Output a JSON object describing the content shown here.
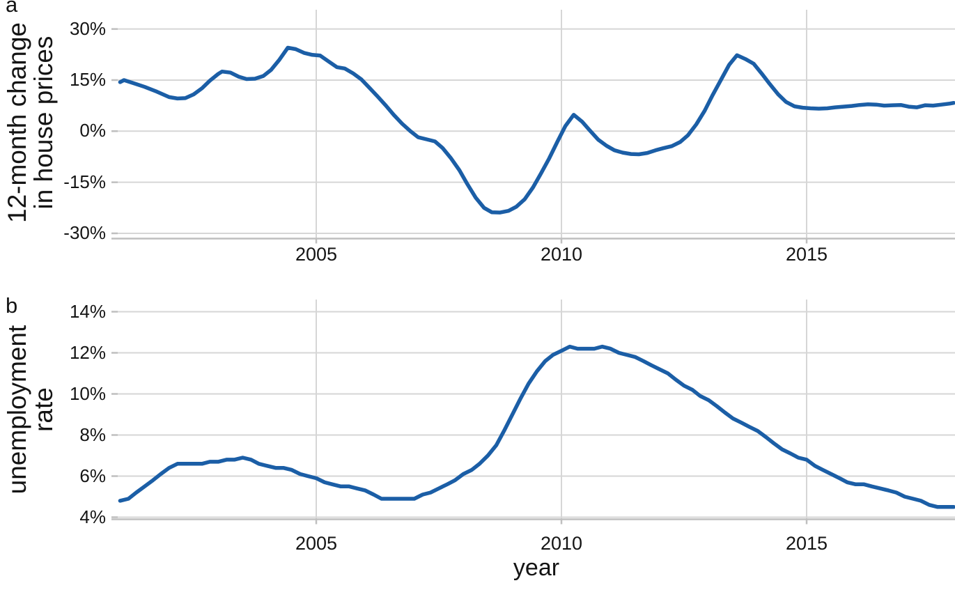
{
  "figure": {
    "panel_a": {
      "label": "a",
      "y_axis_title_line1": "12-month change",
      "y_axis_title_line2": "in house prices"
    },
    "panel_b": {
      "label": "b",
      "y_axis_title_line1": "unemployment",
      "y_axis_title_line2": "rate"
    },
    "x_axis_title": "year"
  },
  "colors": {
    "line": "#1b5ea6",
    "grid": "#d6d6d6",
    "axis": "#bfbfbf",
    "text": "#141414"
  },
  "chart_data": [
    {
      "type": "line",
      "panel": "a",
      "title": "",
      "ylabel": "12-month change in house prices",
      "xlabel": "year",
      "grid": true,
      "legend": "none",
      "xlim": [
        2001,
        2018
      ],
      "ylim": [
        -31.5,
        35.7
      ],
      "x_tick_values": [
        2005,
        2010,
        2015
      ],
      "x_tick_labels": [
        "2005",
        "2010",
        "2015"
      ],
      "y_tick_values": [
        30,
        15,
        0,
        -15,
        -30
      ],
      "y_tick_labels": [
        "30%",
        "15%",
        "0%",
        "-15%",
        "-30%"
      ],
      "series": [
        {
          "name": "12-month change in house prices",
          "x": [
            2001.0,
            2001.08,
            2001.25,
            2001.5,
            2001.75,
            2002.0,
            2002.17,
            2002.33,
            2002.5,
            2002.67,
            2002.83,
            2003.0,
            2003.08,
            2003.25,
            2003.42,
            2003.58,
            2003.75,
            2003.92,
            2004.08,
            2004.25,
            2004.42,
            2004.58,
            2004.75,
            2004.92,
            2005.08,
            2005.25,
            2005.42,
            2005.58,
            2005.75,
            2005.92,
            2006.08,
            2006.25,
            2006.42,
            2006.58,
            2006.75,
            2006.92,
            2007.08,
            2007.25,
            2007.42,
            2007.58,
            2007.75,
            2007.92,
            2008.08,
            2008.25,
            2008.42,
            2008.58,
            2008.75,
            2008.92,
            2009.08,
            2009.25,
            2009.42,
            2009.58,
            2009.75,
            2009.92,
            2010.08,
            2010.25,
            2010.42,
            2010.58,
            2010.75,
            2010.92,
            2011.08,
            2011.25,
            2011.42,
            2011.58,
            2011.75,
            2011.92,
            2012.08,
            2012.25,
            2012.42,
            2012.58,
            2012.75,
            2012.92,
            2013.08,
            2013.25,
            2013.42,
            2013.58,
            2013.75,
            2013.92,
            2014.08,
            2014.25,
            2014.42,
            2014.58,
            2014.75,
            2014.92,
            2015.08,
            2015.25,
            2015.42,
            2015.58,
            2015.75,
            2015.92,
            2016.08,
            2016.25,
            2016.42,
            2016.58,
            2016.75,
            2016.92,
            2017.08,
            2017.25,
            2017.42,
            2017.58,
            2017.75,
            2017.92,
            2018.0
          ],
          "y": [
            14.4,
            15.0,
            14.2,
            13.0,
            11.6,
            10.0,
            9.6,
            9.7,
            10.8,
            12.6,
            14.8,
            16.8,
            17.5,
            17.2,
            16.0,
            15.3,
            15.4,
            16.2,
            18.0,
            21.0,
            24.5,
            24.1,
            23.0,
            22.4,
            22.2,
            20.5,
            18.8,
            18.4,
            17.0,
            15.2,
            12.8,
            10.2,
            7.5,
            4.8,
            2.2,
            0.0,
            -1.8,
            -2.4,
            -3.0,
            -5.0,
            -8.0,
            -11.5,
            -15.5,
            -19.5,
            -22.5,
            -23.8,
            -23.9,
            -23.4,
            -22.2,
            -20.0,
            -16.5,
            -12.5,
            -8.0,
            -3.0,
            1.5,
            4.8,
            2.8,
            0.2,
            -2.5,
            -4.3,
            -5.6,
            -6.3,
            -6.7,
            -6.8,
            -6.4,
            -5.6,
            -5.0,
            -4.4,
            -3.2,
            -1.2,
            2.0,
            6.0,
            10.5,
            15.0,
            19.5,
            22.3,
            21.2,
            19.8,
            17.0,
            13.8,
            10.8,
            8.6,
            7.3,
            6.9,
            6.7,
            6.6,
            6.7,
            7.0,
            7.2,
            7.4,
            7.7,
            7.9,
            7.8,
            7.5,
            7.6,
            7.7,
            7.2,
            7.0,
            7.6,
            7.5,
            7.8,
            8.1,
            8.3
          ]
        }
      ]
    },
    {
      "type": "line",
      "panel": "b",
      "title": "",
      "ylabel": "unemployment rate",
      "xlabel": "year",
      "grid": true,
      "legend": "none",
      "xlim": [
        2001,
        2018
      ],
      "ylim": [
        3.9,
        14.6
      ],
      "x_tick_values": [
        2005,
        2010,
        2015
      ],
      "x_tick_labels": [
        "2005",
        "2010",
        "2015"
      ],
      "y_tick_values": [
        14,
        12,
        10,
        8,
        6,
        4
      ],
      "y_tick_labels": [
        "14%",
        "12%",
        "10%",
        "8%",
        "6%",
        "4%"
      ],
      "series": [
        {
          "name": "unemployment rate",
          "x": [
            2001.0,
            2001.17,
            2001.33,
            2001.5,
            2001.67,
            2001.83,
            2002.0,
            2002.17,
            2002.33,
            2002.5,
            2002.67,
            2002.83,
            2003.0,
            2003.17,
            2003.33,
            2003.5,
            2003.67,
            2003.83,
            2004.0,
            2004.17,
            2004.33,
            2004.5,
            2004.67,
            2004.83,
            2005.0,
            2005.17,
            2005.33,
            2005.5,
            2005.67,
            2005.83,
            2006.0,
            2006.17,
            2006.33,
            2006.5,
            2006.67,
            2006.83,
            2007.0,
            2007.17,
            2007.33,
            2007.5,
            2007.67,
            2007.83,
            2008.0,
            2008.17,
            2008.33,
            2008.5,
            2008.67,
            2008.83,
            2009.0,
            2009.17,
            2009.33,
            2009.5,
            2009.67,
            2009.83,
            2010.0,
            2010.17,
            2010.33,
            2010.5,
            2010.67,
            2010.83,
            2011.0,
            2011.17,
            2011.33,
            2011.5,
            2011.67,
            2011.83,
            2012.0,
            2012.17,
            2012.33,
            2012.5,
            2012.67,
            2012.83,
            2013.0,
            2013.17,
            2013.33,
            2013.5,
            2013.67,
            2013.83,
            2014.0,
            2014.17,
            2014.33,
            2014.5,
            2014.67,
            2014.83,
            2015.0,
            2015.17,
            2015.33,
            2015.5,
            2015.67,
            2015.83,
            2016.0,
            2016.17,
            2016.33,
            2016.5,
            2016.67,
            2016.83,
            2017.0,
            2017.17,
            2017.33,
            2017.5,
            2017.67,
            2017.83,
            2018.0
          ],
          "y": [
            4.8,
            4.9,
            5.2,
            5.5,
            5.8,
            6.1,
            6.4,
            6.6,
            6.6,
            6.6,
            6.6,
            6.7,
            6.7,
            6.8,
            6.8,
            6.9,
            6.8,
            6.6,
            6.5,
            6.4,
            6.4,
            6.3,
            6.1,
            6.0,
            5.9,
            5.7,
            5.6,
            5.5,
            5.5,
            5.4,
            5.3,
            5.1,
            4.9,
            4.9,
            4.9,
            4.9,
            4.9,
            5.1,
            5.2,
            5.4,
            5.6,
            5.8,
            6.1,
            6.3,
            6.6,
            7.0,
            7.5,
            8.2,
            9.0,
            9.8,
            10.5,
            11.1,
            11.6,
            11.9,
            12.1,
            12.3,
            12.2,
            12.2,
            12.2,
            12.3,
            12.2,
            12.0,
            11.9,
            11.8,
            11.6,
            11.4,
            11.2,
            11.0,
            10.7,
            10.4,
            10.2,
            9.9,
            9.7,
            9.4,
            9.1,
            8.8,
            8.6,
            8.4,
            8.2,
            7.9,
            7.6,
            7.3,
            7.1,
            6.9,
            6.8,
            6.5,
            6.3,
            6.1,
            5.9,
            5.7,
            5.6,
            5.6,
            5.5,
            5.4,
            5.3,
            5.2,
            5.0,
            4.9,
            4.8,
            4.6,
            4.5,
            4.5,
            4.5
          ]
        }
      ]
    }
  ]
}
